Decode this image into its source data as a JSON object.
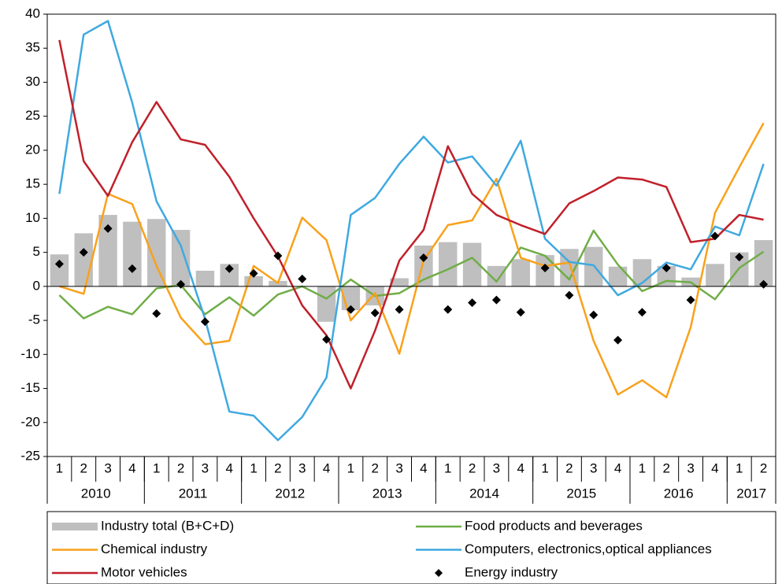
{
  "chart_data": {
    "type": "combo",
    "category_groups": [
      {
        "label": "2010",
        "categories": [
          "1",
          "2",
          "3",
          "4"
        ]
      },
      {
        "label": "2011",
        "categories": [
          "1",
          "2",
          "3",
          "4"
        ]
      },
      {
        "label": "2012",
        "categories": [
          "1",
          "2",
          "3",
          "4"
        ]
      },
      {
        "label": "2013",
        "categories": [
          "1",
          "2",
          "3",
          "4"
        ]
      },
      {
        "label": "2014",
        "categories": [
          "1",
          "2",
          "3",
          "4"
        ]
      },
      {
        "label": "2015",
        "categories": [
          "1",
          "2",
          "3",
          "4"
        ]
      },
      {
        "label": "2016",
        "categories": [
          "1",
          "2",
          "3",
          "4"
        ]
      },
      {
        "label": "2017",
        "categories": [
          "1",
          "2"
        ]
      }
    ],
    "ylim": [
      -25,
      40
    ],
    "yticks": [
      -25,
      -20,
      -15,
      -10,
      -5,
      0,
      5,
      10,
      15,
      20,
      25,
      30,
      35,
      40
    ],
    "series": [
      {
        "name": "Industry total (B+C+D)",
        "type": "bar",
        "color": "#bfbfbf",
        "values": [
          4.7,
          7.8,
          10.5,
          9.5,
          9.9,
          8.3,
          2.3,
          3.3,
          1.5,
          0.8,
          0,
          -5.2,
          -3.5,
          -2.8,
          1.2,
          6.0,
          6.5,
          6.4,
          3.0,
          4.0,
          4.6,
          5.5,
          5.8,
          2.9,
          4.0,
          3.0,
          1.3,
          3.3,
          5.0,
          6.8
        ]
      },
      {
        "name": "Food products and beverages",
        "type": "line",
        "color": "#70ad47",
        "values": [
          -1.3,
          -4.7,
          -3.0,
          -4.1,
          -0.3,
          0.2,
          -4.1,
          -1.6,
          -4.3,
          -1.2,
          0.0,
          -1.8,
          1.0,
          -1.4,
          -1.0,
          1.0,
          2.5,
          4.2,
          0.7,
          5.7,
          4.5,
          1.0,
          8.2,
          3.2,
          -0.7,
          0.8,
          0.6,
          -1.9,
          2.7,
          5.1
        ]
      },
      {
        "name": "Chemical industry",
        "type": "line",
        "color": "#f9a11b",
        "values": [
          0.0,
          -1.1,
          13.6,
          12.1,
          3.0,
          -4.6,
          -8.5,
          -8.0,
          3.0,
          0.5,
          10.1,
          6.8,
          -5.0,
          -1.0,
          -9.9,
          3.8,
          9.0,
          9.7,
          15.8,
          4.2,
          3.0,
          3.5,
          -8.0,
          -15.9,
          -13.8,
          -16.3,
          -6.0,
          10.8,
          17.5,
          24.0
        ]
      },
      {
        "name": "Computers, electronics,optical appliances",
        "type": "line",
        "color": "#3fa9e0",
        "values": [
          13.6,
          37.0,
          39.0,
          27.0,
          12.5,
          6.0,
          -4.8,
          -18.4,
          -19.0,
          -22.6,
          -19.2,
          -13.4,
          10.5,
          13.0,
          18.0,
          22.0,
          18.2,
          19.1,
          14.8,
          21.4,
          7.0,
          3.6,
          3.1,
          -1.3,
          0.5,
          3.5,
          2.5,
          8.8,
          7.5,
          18.0
        ]
      },
      {
        "name": "Motor vehicles",
        "type": "line",
        "color": "#c0202a",
        "values": [
          36.2,
          18.4,
          13.3,
          21.2,
          27.1,
          21.6,
          20.8,
          16.1,
          10.0,
          4.4,
          -2.8,
          -7.2,
          -15.0,
          -6.5,
          3.8,
          8.3,
          20.6,
          13.6,
          10.5,
          9.0,
          7.7,
          12.2,
          14.0,
          16.0,
          15.7,
          14.6,
          6.5,
          7.0,
          10.5,
          9.8
        ]
      },
      {
        "name": "Energy industry",
        "type": "scatter",
        "color": "#000000",
        "values": [
          3.3,
          5.0,
          8.5,
          2.6,
          -4.0,
          0.3,
          -5.2,
          2.6,
          1.9,
          4.5,
          1.1,
          -7.8,
          -3.4,
          -3.9,
          -3.4,
          4.2,
          -3.4,
          -2.4,
          -2.0,
          -3.8,
          2.7,
          -1.3,
          -4.2,
          -7.9,
          -3.8,
          2.7,
          -2.0,
          7.4,
          4.3,
          0.3
        ]
      }
    ]
  }
}
